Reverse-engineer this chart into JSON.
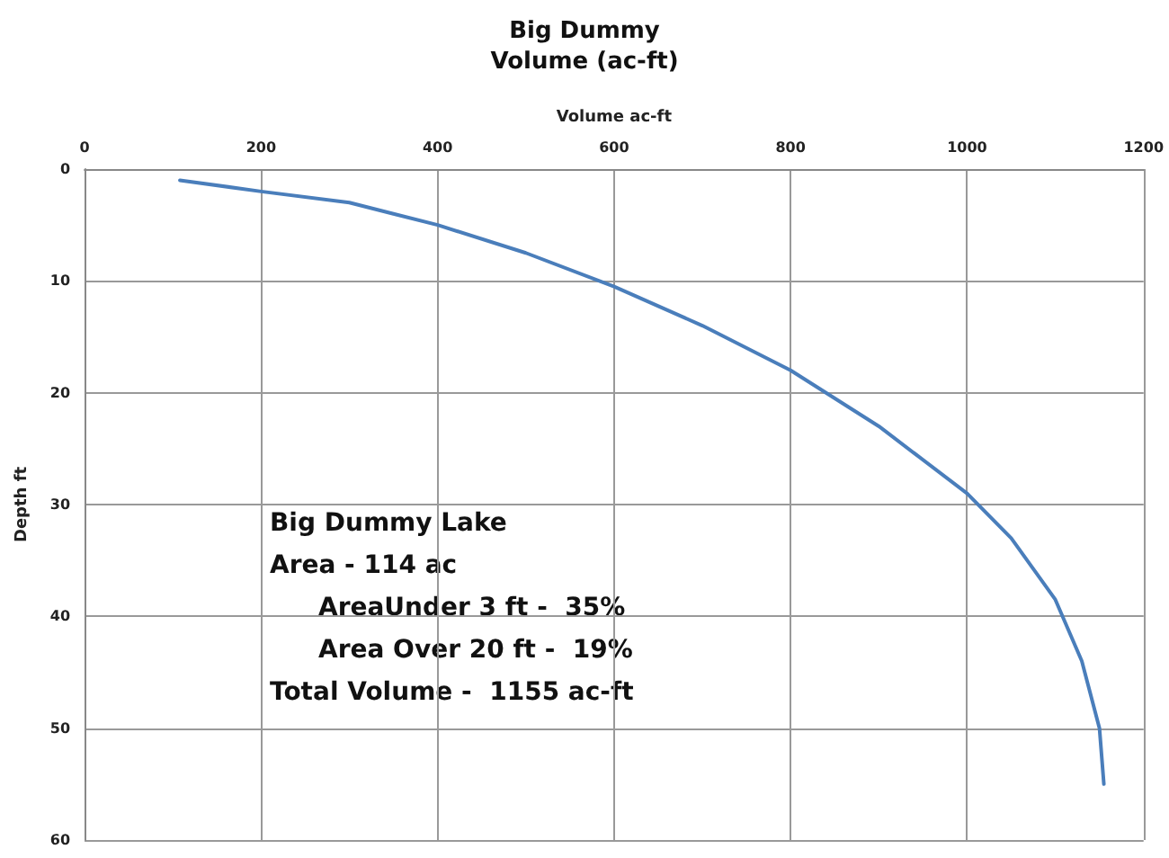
{
  "chart_data": {
    "type": "line",
    "title": "Big Dummy",
    "subtitle": "Volume (ac-ft)",
    "xlabel": "Volume ac-ft",
    "ylabel": "Depth ft",
    "x": [
      108,
      200,
      300,
      350,
      400,
      500,
      600,
      700,
      800,
      900,
      1000,
      1050,
      1100,
      1130,
      1150,
      1155
    ],
    "series": [
      {
        "color": "#4a7ebb",
        "values": [
          1,
          2,
          3,
          4,
          5,
          7.5,
          10.5,
          14,
          18,
          23,
          29,
          33,
          38.5,
          44,
          50,
          55
        ]
      }
    ],
    "xlim": [
      0,
      1200
    ],
    "xticks": [
      0,
      200,
      400,
      600,
      800,
      1000,
      1200
    ],
    "ylim": [
      60,
      0
    ],
    "yticks": [
      0,
      10,
      20,
      30,
      40,
      50,
      60
    ],
    "grid": true,
    "marker": "none",
    "line_style": "solid",
    "annotations": [
      "Big Dummy Lake",
      "Area - 114 ac",
      "AreaUnder 3 ft -  35%",
      "Area Over 20 ft -  19%",
      "Total Volume -  1155 ac-ft"
    ]
  }
}
